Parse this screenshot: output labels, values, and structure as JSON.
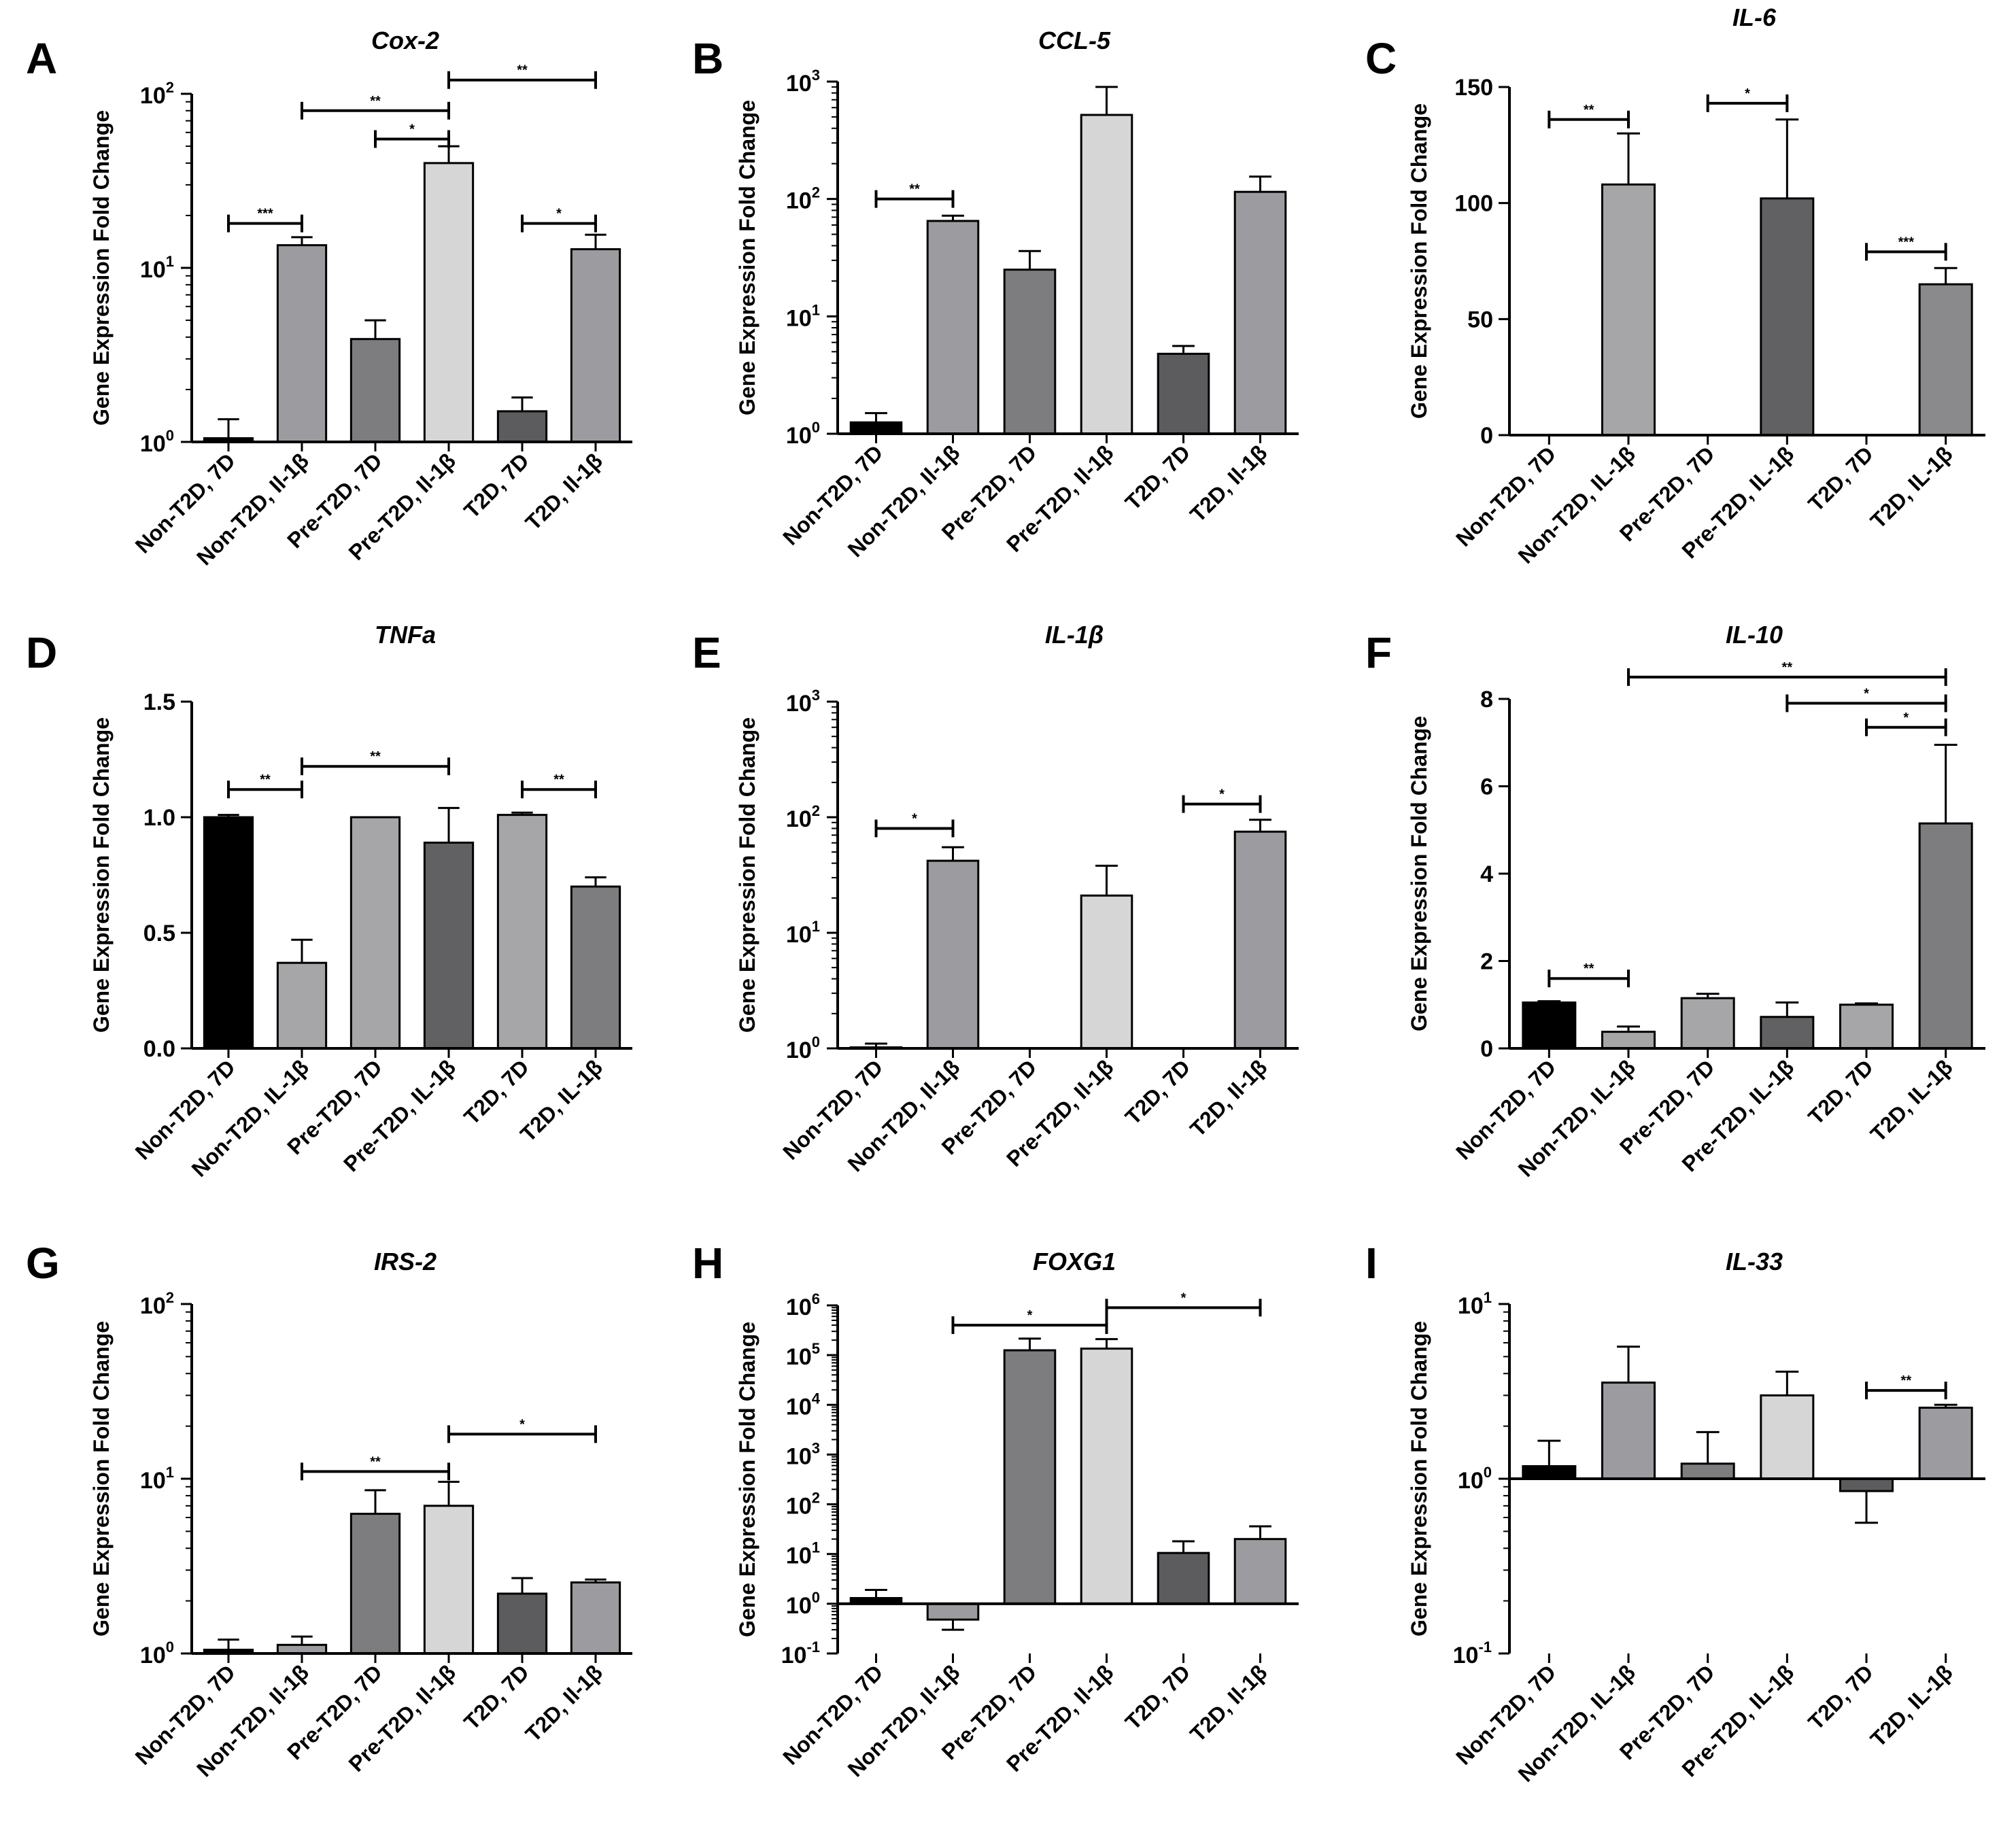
{
  "chart_data": [
    {
      "panel": "A",
      "title": "Cox-2",
      "type": "bar",
      "scale": "log",
      "ylabel": "Gene Expression Fold Change",
      "ylim": [
        1,
        100
      ],
      "yticks": [
        {
          "base": "10",
          "exp": "0",
          "v": 1
        },
        {
          "base": "10",
          "exp": "1",
          "v": 10
        },
        {
          "base": "10",
          "exp": "2",
          "v": 100
        }
      ],
      "categories": [
        "Non-T2D, 7D",
        "Non-T2D, Il-1β",
        "Pre-T2D, 7D",
        "Pre-T2D, Il-1β",
        "T2D, 7D",
        "T2D, Il-1β"
      ],
      "values": [
        1.05,
        13.5,
        3.9,
        40,
        1.5,
        12.8
      ],
      "errors": [
        1.35,
        15,
        5.0,
        50,
        1.8,
        15.5
      ],
      "colors": [
        "#000000",
        "#9c9ca0",
        "#7d7d80",
        "#d6d6d6",
        "#5c5c5f",
        "#9c9ca0"
      ],
      "sig": [
        {
          "from": 0,
          "to": 1,
          "label": "***",
          "y": 18
        },
        {
          "from": 1,
          "to": 3,
          "label": "**",
          "y": 80
        },
        {
          "from": 2,
          "to": 3,
          "label": "*",
          "y": 55
        },
        {
          "from": 3,
          "to": 5,
          "label": "**",
          "y": 120
        },
        {
          "from": 4,
          "to": 5,
          "label": "*",
          "y": 18
        }
      ]
    },
    {
      "panel": "B",
      "title": "CCL-5",
      "type": "bar",
      "scale": "log",
      "ylabel": "Gene Expression Fold Change",
      "ylim": [
        1,
        1000
      ],
      "yticks": [
        {
          "base": "10",
          "exp": "0",
          "v": 1
        },
        {
          "base": "10",
          "exp": "1",
          "v": 10
        },
        {
          "base": "10",
          "exp": "2",
          "v": 100
        },
        {
          "base": "10",
          "exp": "3",
          "v": 1000
        }
      ],
      "categories": [
        "Non-T2D, 7D",
        "Non-T2D, Il-1β",
        "Pre-T2D, 7D",
        "Pre-T2D, Il-1β",
        "T2D, 7D",
        "T2D, Il-1β"
      ],
      "values": [
        1.25,
        65,
        25,
        520,
        4.8,
        115
      ],
      "errors": [
        1.5,
        72,
        36,
        900,
        5.6,
        155
      ],
      "colors": [
        "#000000",
        "#9c9ca0",
        "#7d7d80",
        "#d6d6d6",
        "#5c5c5f",
        "#9c9ca0"
      ],
      "sig": [
        {
          "from": 0,
          "to": 1,
          "label": "**",
          "y": 100
        }
      ]
    },
    {
      "panel": "C",
      "title": "IL-6",
      "type": "bar",
      "scale": "linear",
      "ylabel": "Gene Expression Fold Change",
      "ylim": [
        0,
        150
      ],
      "yticks": [
        {
          "base": "0",
          "exp": "",
          "v": 0
        },
        {
          "base": "50",
          "exp": "",
          "v": 50
        },
        {
          "base": "100",
          "exp": "",
          "v": 100
        },
        {
          "base": "150",
          "exp": "",
          "v": 150
        }
      ],
      "categories": [
        "Non-T2D, 7D",
        "Non-T2D, IL-1β",
        "Pre-T2D, 7D",
        "Pre-T2D, IL-1β",
        "T2D, 7D",
        "T2D, IL-1β"
      ],
      "values": [
        0,
        108,
        0,
        102,
        0,
        65
      ],
      "errors": [
        0,
        130,
        0,
        136,
        0,
        72
      ],
      "colors": [
        "#000000",
        "#a6a6a9",
        "#7d7d80",
        "#616164",
        "#5c5c5f",
        "#8a8a8d"
      ],
      "sig": [
        {
          "from": 0,
          "to": 1,
          "label": "**",
          "y": 136
        },
        {
          "from": 2,
          "to": 3,
          "label": "*",
          "y": 143
        },
        {
          "from": 4,
          "to": 5,
          "label": "***",
          "y": 79
        }
      ]
    },
    {
      "panel": "D",
      "title": "TNFa",
      "type": "bar",
      "scale": "linear",
      "ylabel": "Gene Expression Fold Change",
      "ylim": [
        0,
        1.5
      ],
      "yticks": [
        {
          "base": "0.0",
          "exp": "",
          "v": 0
        },
        {
          "base": "0.5",
          "exp": "",
          "v": 0.5
        },
        {
          "base": "1.0",
          "exp": "",
          "v": 1.0
        },
        {
          "base": "1.5",
          "exp": "",
          "v": 1.5
        }
      ],
      "categories": [
        "Non-T2D, 7D",
        "Non-T2D, IL-1β",
        "Pre-T2D, 7D",
        "Pre-T2D, IL-1β",
        "T2D, 7D",
        "T2D, IL-1β"
      ],
      "values": [
        1.0,
        0.37,
        1.0,
        0.89,
        1.01,
        0.7
      ],
      "errors": [
        1.01,
        0.47,
        1.0,
        1.04,
        1.02,
        0.74
      ],
      "colors": [
        "#000000",
        "#a6a6a9",
        "#a6a6a9",
        "#616164",
        "#a6a6a9",
        "#7d7d80"
      ],
      "sig": [
        {
          "from": 0,
          "to": 1,
          "label": "**",
          "y": 1.12
        },
        {
          "from": 1,
          "to": 3,
          "label": "**",
          "y": 1.22
        },
        {
          "from": 4,
          "to": 5,
          "label": "**",
          "y": 1.12
        }
      ]
    },
    {
      "panel": "E",
      "title": "IL-1β",
      "type": "bar",
      "scale": "log",
      "ylabel": "Gene Expression Fold Change",
      "ylim": [
        1,
        1000
      ],
      "yticks": [
        {
          "base": "10",
          "exp": "0",
          "v": 1
        },
        {
          "base": "10",
          "exp": "1",
          "v": 10
        },
        {
          "base": "10",
          "exp": "2",
          "v": 100
        },
        {
          "base": "10",
          "exp": "3",
          "v": 1000
        }
      ],
      "categories": [
        "Non-T2D, 7D",
        "Non-T2D, Il-1β",
        "Pre-T2D, 7D",
        "Pre-T2D, Il-1β",
        "T2D, 7D",
        "T2D, Il-1β"
      ],
      "values": [
        1.02,
        42,
        0,
        21,
        0,
        75
      ],
      "errors": [
        1.1,
        55,
        0,
        38,
        0,
        95
      ],
      "colors": [
        "#000000",
        "#9c9ca0",
        "#7d7d80",
        "#d6d6d6",
        "#5c5c5f",
        "#9c9ca0"
      ],
      "sig": [
        {
          "from": 0,
          "to": 1,
          "label": "*",
          "y": 80
        },
        {
          "from": 4,
          "to": 5,
          "label": "*",
          "y": 130
        }
      ]
    },
    {
      "panel": "F",
      "title": "IL-10",
      "type": "bar",
      "scale": "linear",
      "ylabel": "Gene Expression Fold Change",
      "ylim": [
        0,
        8
      ],
      "yticks": [
        {
          "base": "0",
          "exp": "",
          "v": 0
        },
        {
          "base": "2",
          "exp": "",
          "v": 2
        },
        {
          "base": "4",
          "exp": "",
          "v": 4
        },
        {
          "base": "6",
          "exp": "",
          "v": 6
        },
        {
          "base": "8",
          "exp": "",
          "v": 8
        }
      ],
      "categories": [
        "Non-T2D, 7D",
        "Non-T2D, IL-1β",
        "Pre-T2D, 7D",
        "Pre-T2D, IL-1β",
        "T2D, 7D",
        "T2D, IL-1β"
      ],
      "values": [
        1.05,
        0.38,
        1.15,
        0.72,
        1.0,
        5.15
      ],
      "errors": [
        1.08,
        0.5,
        1.25,
        1.05,
        1.03,
        6.95
      ],
      "colors": [
        "#000000",
        "#a6a6a9",
        "#a6a6a9",
        "#616164",
        "#a6a6a9",
        "#7d7d80"
      ],
      "sig": [
        {
          "from": 0,
          "to": 1,
          "label": "**",
          "y": 1.6
        },
        {
          "from": 1,
          "to": 5,
          "label": "**",
          "y": 8.5
        },
        {
          "from": 3,
          "to": 5,
          "label": "*",
          "y": 7.9
        },
        {
          "from": 4,
          "to": 5,
          "label": "*",
          "y": 7.35
        }
      ]
    },
    {
      "panel": "G",
      "title": "IRS-2",
      "type": "bar",
      "scale": "log",
      "ylabel": "Gene Expression Fold Change",
      "ylim": [
        1,
        100
      ],
      "yticks": [
        {
          "base": "10",
          "exp": "0",
          "v": 1
        },
        {
          "base": "10",
          "exp": "1",
          "v": 10
        },
        {
          "base": "10",
          "exp": "2",
          "v": 100
        }
      ],
      "categories": [
        "Non-T2D, 7D",
        "Non-T2D, Il-1β",
        "Pre-T2D, 7D",
        "Pre-T2D, Il-1β",
        "T2D, 7D",
        "T2D, Il-1β"
      ],
      "values": [
        1.05,
        1.12,
        6.3,
        7.0,
        2.2,
        2.55
      ],
      "errors": [
        1.2,
        1.25,
        8.6,
        9.6,
        2.7,
        2.65
      ],
      "colors": [
        "#000000",
        "#9c9ca0",
        "#7d7d80",
        "#d6d6d6",
        "#5c5c5f",
        "#9c9ca0"
      ],
      "sig": [
        {
          "from": 1,
          "to": 3,
          "label": "**",
          "y": 11
        },
        {
          "from": 3,
          "to": 5,
          "label": "*",
          "y": 18
        }
      ]
    },
    {
      "panel": "H",
      "title": "FOXG1",
      "type": "bar",
      "scale": "log",
      "ylabel": "Gene Expression Fold Change",
      "ylim": [
        0.1,
        1000000
      ],
      "baseline": 1,
      "yticks": [
        {
          "base": "10",
          "exp": "-1",
          "v": 0.1
        },
        {
          "base": "10",
          "exp": "0",
          "v": 1
        },
        {
          "base": "10",
          "exp": "1",
          "v": 10
        },
        {
          "base": "10",
          "exp": "2",
          "v": 100
        },
        {
          "base": "10",
          "exp": "3",
          "v": 1000
        },
        {
          "base": "10",
          "exp": "4",
          "v": 10000
        },
        {
          "base": "10",
          "exp": "5",
          "v": 100000
        },
        {
          "base": "10",
          "exp": "6",
          "v": 1000000
        }
      ],
      "categories": [
        "Non-T2D, 7D",
        "Non-T2D, Il-1β",
        "Pre-T2D, 7D",
        "Pre-T2D, Il-1β",
        "T2D, 7D",
        "T2D, Il-1β"
      ],
      "values": [
        1.3,
        0.48,
        125000,
        135000,
        10.5,
        20
      ],
      "errors": [
        1.9,
        0.3,
        215000,
        210000,
        18,
        36
      ],
      "colors": [
        "#000000",
        "#9c9ca0",
        "#7d7d80",
        "#d6d6d6",
        "#5c5c5f",
        "#9c9ca0"
      ],
      "sig": [
        {
          "from": 1,
          "to": 3,
          "label": "*",
          "y": 400000
        },
        {
          "from": 3,
          "to": 5,
          "label": "*",
          "y": 900000
        }
      ]
    },
    {
      "panel": "I",
      "title": "IL-33",
      "type": "bar",
      "scale": "log",
      "ylabel": "Gene Expression Fold Change",
      "ylim": [
        0.1,
        10
      ],
      "baseline": 1,
      "yticks": [
        {
          "base": "10",
          "exp": "-1",
          "v": 0.1
        },
        {
          "base": "10",
          "exp": "0",
          "v": 1
        },
        {
          "base": "10",
          "exp": "1",
          "v": 10
        }
      ],
      "categories": [
        "Non-T2D, 7D",
        "Non-T2D, IL-1β",
        "Pre-T2D, 7D",
        "Pre-T2D, IL-1β",
        "T2D, 7D",
        "T2D, IL-1β"
      ],
      "values": [
        1.18,
        3.55,
        1.22,
        3.0,
        0.85,
        2.55
      ],
      "errors": [
        1.65,
        5.7,
        1.85,
        4.1,
        0.56,
        2.65
      ],
      "colors": [
        "#000000",
        "#9c9ca0",
        "#7d7d80",
        "#d6d6d6",
        "#5c5c5f",
        "#9c9ca0"
      ],
      "sig": [
        {
          "from": 4,
          "to": 5,
          "label": "**",
          "y": 3.2
        }
      ]
    }
  ]
}
